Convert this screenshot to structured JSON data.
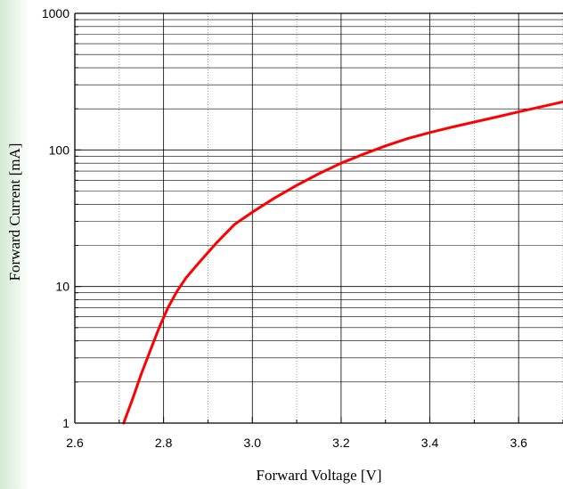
{
  "chart_data": {
    "type": "line",
    "title": "",
    "xlabel": "Forward Voltage [V]",
    "ylabel": "Forward Current [mA]",
    "xlim": [
      2.6,
      3.7
    ],
    "ylim": [
      1,
      1000
    ],
    "yscale": "log",
    "grid": true,
    "x_ticks": [
      "2.6",
      "2.8",
      "3.0",
      "3.2",
      "3.4",
      "3.6"
    ],
    "y_ticks": [
      "1",
      "10",
      "100",
      "1000"
    ],
    "series": [
      {
        "color": "#ff0000",
        "x": [
          2.71,
          2.73,
          2.75,
          2.77,
          2.79,
          2.81,
          2.83,
          2.85,
          2.88,
          2.92,
          2.96,
          3.0,
          3.05,
          3.1,
          3.15,
          3.2,
          3.25,
          3.3,
          3.35,
          3.4,
          3.45,
          3.5,
          3.55,
          3.6,
          3.65,
          3.7
        ],
        "y": [
          1.0,
          1.5,
          2.3,
          3.4,
          5.0,
          7.0,
          9.2,
          11.5,
          15.0,
          21.0,
          28.5,
          35.0,
          44.5,
          55.0,
          67.0,
          80.0,
          93.0,
          107.0,
          121.0,
          134.0,
          147.0,
          160.0,
          174.0,
          190.0,
          207.0,
          225.0
        ]
      }
    ]
  }
}
